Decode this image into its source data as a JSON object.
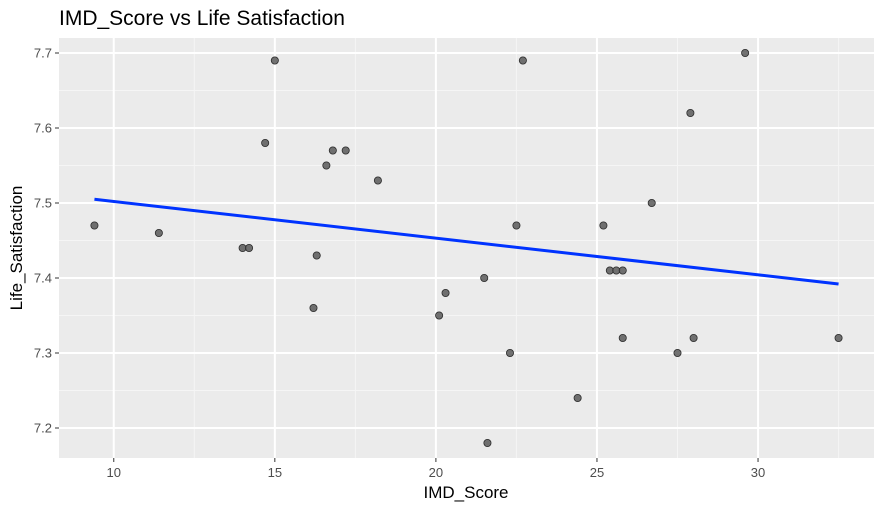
{
  "chart_data": {
    "type": "scatter",
    "title": "IMD_Score vs Life Satisfaction",
    "xlabel": "IMD_Score",
    "ylabel": "Life_Satisfaction",
    "xlim": [
      8.3,
      33.6
    ],
    "ylim": [
      7.16,
      7.72
    ],
    "x_ticks": [
      10,
      15,
      20,
      25,
      30
    ],
    "x_tick_labels": [
      "10",
      "15",
      "20",
      "25",
      "30"
    ],
    "y_ticks": [
      7.2,
      7.3,
      7.4,
      7.5,
      7.6,
      7.7
    ],
    "y_tick_labels": [
      "7.2",
      "7.3",
      "7.4",
      "7.5",
      "7.6",
      "7.7"
    ],
    "grid": true,
    "points": [
      {
        "x": 9.4,
        "y": 7.47
      },
      {
        "x": 11.4,
        "y": 7.46
      },
      {
        "x": 14.0,
        "y": 7.44
      },
      {
        "x": 14.2,
        "y": 7.44
      },
      {
        "x": 14.7,
        "y": 7.58
      },
      {
        "x": 15.0,
        "y": 7.69
      },
      {
        "x": 16.2,
        "y": 7.36
      },
      {
        "x": 16.3,
        "y": 7.43
      },
      {
        "x": 16.6,
        "y": 7.55
      },
      {
        "x": 16.8,
        "y": 7.57
      },
      {
        "x": 17.2,
        "y": 7.57
      },
      {
        "x": 18.2,
        "y": 7.53
      },
      {
        "x": 20.1,
        "y": 7.35
      },
      {
        "x": 20.3,
        "y": 7.38
      },
      {
        "x": 21.5,
        "y": 7.4
      },
      {
        "x": 21.6,
        "y": 7.18
      },
      {
        "x": 22.3,
        "y": 7.3
      },
      {
        "x": 22.5,
        "y": 7.47
      },
      {
        "x": 22.7,
        "y": 7.69
      },
      {
        "x": 24.4,
        "y": 7.24
      },
      {
        "x": 25.2,
        "y": 7.47
      },
      {
        "x": 25.4,
        "y": 7.41
      },
      {
        "x": 25.6,
        "y": 7.41
      },
      {
        "x": 25.8,
        "y": 7.41
      },
      {
        "x": 25.8,
        "y": 7.32
      },
      {
        "x": 26.7,
        "y": 7.5
      },
      {
        "x": 27.5,
        "y": 7.3
      },
      {
        "x": 27.9,
        "y": 7.62
      },
      {
        "x": 28.0,
        "y": 7.32
      },
      {
        "x": 29.6,
        "y": 7.7
      },
      {
        "x": 32.5,
        "y": 7.32
      }
    ],
    "trend_line": {
      "x": [
        9.4,
        32.5
      ],
      "y": [
        7.505,
        7.392
      ]
    },
    "colors": {
      "panel_background": "#ebebeb",
      "grid_major": "#ffffff",
      "grid_minor": "#f5f5f5",
      "point": "#595959",
      "point_stroke": "#2b2b2b",
      "trend_line": "#0033ff"
    }
  }
}
